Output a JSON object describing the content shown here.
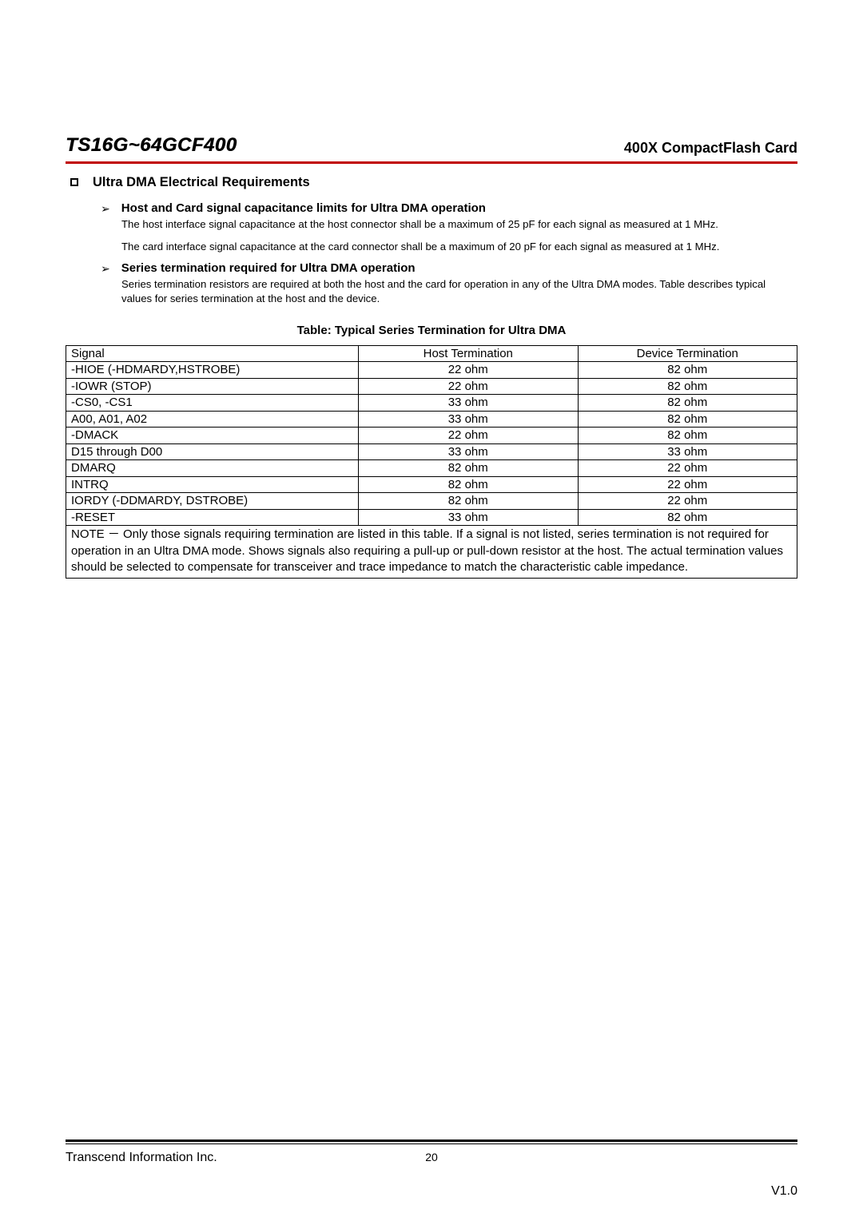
{
  "header": {
    "product_title": "TS16G~64GCF400",
    "product_subtitle": "400X CompactFlash Card",
    "rule_color": "#c00000"
  },
  "section1": {
    "title": "Ultra DMA Electrical Requirements"
  },
  "sub1": {
    "title": "Host and Card signal capacitance limits for Ultra DMA operation",
    "p1": "The host interface signal capacitance at the host connector shall be a maximum of 25 pF for each signal as measured at 1 MHz.",
    "p2": "The card interface signal capacitance at the card connector shall be a maximum of 20 pF for each signal as measured at 1 MHz."
  },
  "sub2": {
    "title": "Series termination required for Ultra DMA operation",
    "p1": "Series termination resistors are required at both the host and the card for operation in any of the Ultra DMA modes. Table describes typical values for series termination at the host and the device."
  },
  "table": {
    "caption": "Table: Typical Series Termination for Ultra DMA",
    "columns": [
      "Signal",
      "Host Termination",
      "Device Termination"
    ],
    "col_widths": [
      "40%",
      "30%",
      "30%"
    ],
    "col_align": [
      "left",
      "center",
      "center"
    ],
    "rows": [
      [
        "-HIOE (-HDMARDY,HSTROBE)",
        "22 ohm",
        "82 ohm"
      ],
      [
        "-IOWR (STOP)",
        "22 ohm",
        "82 ohm"
      ],
      [
        "-CS0, -CS1",
        "33 ohm",
        "82 ohm"
      ],
      [
        "A00, A01, A02",
        "33 ohm",
        "82 ohm"
      ],
      [
        "-DMACK",
        "22 ohm",
        "82 ohm"
      ],
      [
        "D15 through D00",
        "33 ohm",
        "33 ohm"
      ],
      [
        "DMARQ",
        "82 ohm",
        "22 ohm"
      ],
      [
        "INTRQ",
        "82 ohm",
        "22 ohm"
      ],
      [
        "IORDY (-DDMARDY, DSTROBE)",
        "82 ohm",
        "22 ohm"
      ],
      [
        "-RESET",
        "33 ohm",
        "82 ohm"
      ]
    ],
    "note": "NOTE －  Only those signals requiring termination are listed in this table. If a signal is not listed, series termination is not required for operation in an Ultra DMA mode. Shows signals also requiring a pull-up or pull-down resistor at the host. The actual termination values should be selected to compensate for transceiver and trace impedance to match the characteristic cable impedance."
  },
  "footer": {
    "company": "Transcend Information Inc.",
    "page": "20",
    "version": "V1.0"
  }
}
